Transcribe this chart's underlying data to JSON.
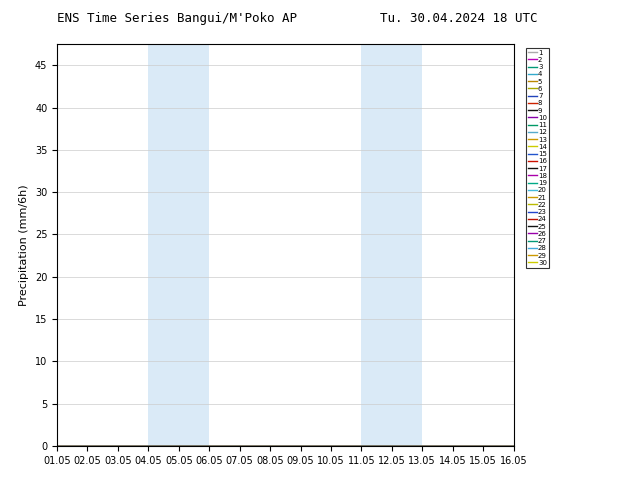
{
  "title_left": "ENS Time Series Bangui/M'Poko AP",
  "title_right": "Tu. 30.04.2024 18 UTC",
  "ylabel": "Precipitation (mm/6h)",
  "ylim": [
    0,
    47.5
  ],
  "yticks": [
    0,
    5,
    10,
    15,
    20,
    25,
    30,
    35,
    40,
    45
  ],
  "xlabel_dates": [
    "01.05",
    "02.05",
    "03.05",
    "04.05",
    "05.05",
    "06.05",
    "07.05",
    "08.05",
    "09.05",
    "10.05",
    "11.05",
    "12.05",
    "13.05",
    "14.05",
    "15.05",
    "16.05"
  ],
  "shading_bands": [
    {
      "xstart": 3.0,
      "xend": 4.0,
      "color": "#daeaf7"
    },
    {
      "xstart": 4.0,
      "xend": 5.0,
      "color": "#daeaf7"
    },
    {
      "xstart": 10.0,
      "xend": 11.0,
      "color": "#daeaf7"
    },
    {
      "xstart": 11.0,
      "xend": 12.0,
      "color": "#daeaf7"
    }
  ],
  "member_colors": [
    "#aaaaaa",
    "#bb00bb",
    "#009977",
    "#33aacc",
    "#bb8800",
    "#aaaa00",
    "#2244bb",
    "#cc2200",
    "#111111",
    "#8800aa",
    "#009966",
    "#55aacc",
    "#cc9900",
    "#cccc00",
    "#2255cc",
    "#cc1100",
    "#111111",
    "#aa00aa",
    "#00aa88",
    "#44bbdd",
    "#cc9900",
    "#bbbb00",
    "#2244cc",
    "#bb1100",
    "#111111",
    "#9900aa",
    "#009977",
    "#44aadd",
    "#cc9900",
    "#cccc00"
  ],
  "background_color": "#ffffff",
  "plot_bg_color": "#ffffff",
  "title_fontsize": 9,
  "tick_fontsize": 7,
  "ylabel_fontsize": 8
}
